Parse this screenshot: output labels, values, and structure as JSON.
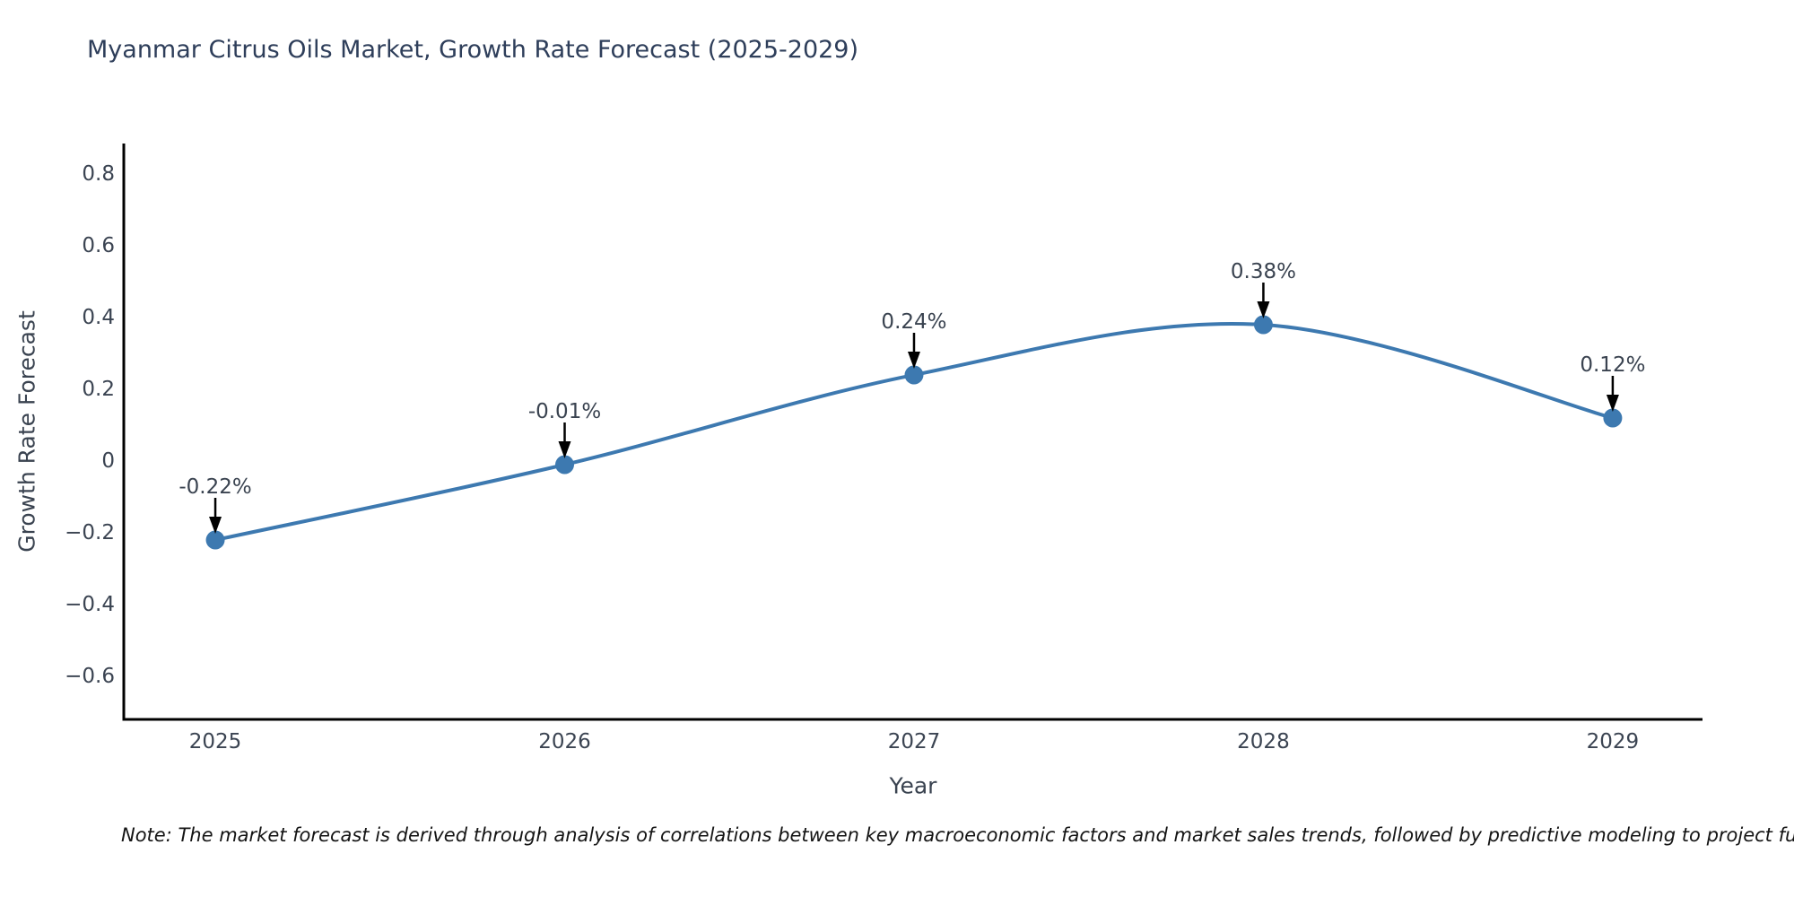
{
  "title": "Myanmar Citrus Oils Market, Growth Rate Forecast (2025-2029)",
  "note": "Note: The market forecast is derived through analysis of correlations between key macroeconomic factors and market sales trends, followed by predictive modeling to project future sa",
  "chart_data": {
    "type": "line",
    "title": "Myanmar Citrus Oils Market, Growth Rate Forecast (2025-2029)",
    "xlabel": "Year",
    "ylabel": "Growth Rate Forecast",
    "x": [
      2025,
      2026,
      2027,
      2028,
      2029
    ],
    "values": [
      -0.22,
      -0.01,
      0.24,
      0.38,
      0.12
    ],
    "point_labels": [
      "-0.22%",
      "-0.01%",
      "0.24%",
      "0.38%",
      "0.12%"
    ],
    "xticks": [
      "2025",
      "2026",
      "2027",
      "2028",
      "2029"
    ],
    "yticks": [
      0.8,
      0.6,
      0.4,
      0.2,
      0,
      -0.2,
      -0.4,
      -0.6
    ],
    "ylim": [
      -0.72,
      0.885
    ],
    "xlim": [
      2024.738,
      2029.257
    ],
    "grid": false,
    "legend": "none",
    "line_color": "#3d79b0",
    "marker_color": "#3d79b0",
    "axis_color": "#000000",
    "annotation_arrow_color": "#000000",
    "smooth": true
  },
  "colors": {
    "background": "#ffffff",
    "title": "#2e3e5a",
    "tick": "#3b4452",
    "axis_label": "#3a4350",
    "note": "#141414"
  }
}
